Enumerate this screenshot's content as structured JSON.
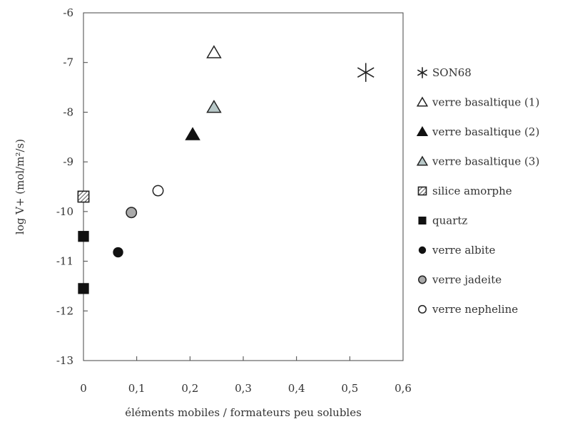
{
  "chart_data": {
    "type": "scatter",
    "xlabel": "éléments mobiles / formateurs peu solubles",
    "ylabel": "log V+ (mol/m²/s)",
    "xlim": [
      0,
      0.6
    ],
    "ylim": [
      -13,
      -6
    ],
    "x_ticks": [
      0,
      0.1,
      0.2,
      0.3,
      0.4,
      0.5,
      0.6
    ],
    "x_tick_labels": [
      "0",
      "0,1",
      "0,2",
      "0,3",
      "0,4",
      "0,5",
      "0,6"
    ],
    "y_ticks": [
      -6,
      -7,
      -8,
      -9,
      -10,
      -11,
      -12,
      -13
    ],
    "y_tick_labels": [
      "-6",
      "-7",
      "-8",
      "-9",
      "-10",
      "-11",
      "-12",
      "-13"
    ],
    "grid": false,
    "legend_position": "right",
    "series": [
      {
        "name": "SON68",
        "marker": "asterisk",
        "color": "#222222",
        "points": [
          {
            "x": 0.53,
            "y": -7.2
          }
        ]
      },
      {
        "name": "verre basaltique (1)",
        "marker": "triangle-open",
        "color": "#222222",
        "points": [
          {
            "x": 0.245,
            "y": -6.8
          }
        ]
      },
      {
        "name": "verre basaltique (2)",
        "marker": "triangle-filled",
        "color": "#111111",
        "points": [
          {
            "x": 0.205,
            "y": -8.45
          }
        ]
      },
      {
        "name": "verre basaltique (3)",
        "marker": "triangle-gray",
        "color": "#222222",
        "fill": "#b8c8c8",
        "points": [
          {
            "x": 0.245,
            "y": -7.9
          }
        ]
      },
      {
        "name": "silice amorphe",
        "marker": "square-hatched",
        "color": "#222222",
        "points": [
          {
            "x": 0.0,
            "y": -9.7
          }
        ]
      },
      {
        "name": "quartz",
        "marker": "square-filled",
        "color": "#111111",
        "points": [
          {
            "x": 0.0,
            "y": -10.5
          },
          {
            "x": 0.0,
            "y": -11.55
          }
        ]
      },
      {
        "name": "verre albite",
        "marker": "circle-filled",
        "color": "#111111",
        "points": [
          {
            "x": 0.065,
            "y": -10.82
          }
        ]
      },
      {
        "name": "verre jadeite",
        "marker": "circle-gray",
        "color": "#222222",
        "fill": "#aaaaaa",
        "points": [
          {
            "x": 0.09,
            "y": -10.02
          }
        ]
      },
      {
        "name": "verre nepheline",
        "marker": "circle-open",
        "color": "#222222",
        "points": [
          {
            "x": 0.14,
            "y": -9.58
          }
        ]
      }
    ]
  }
}
